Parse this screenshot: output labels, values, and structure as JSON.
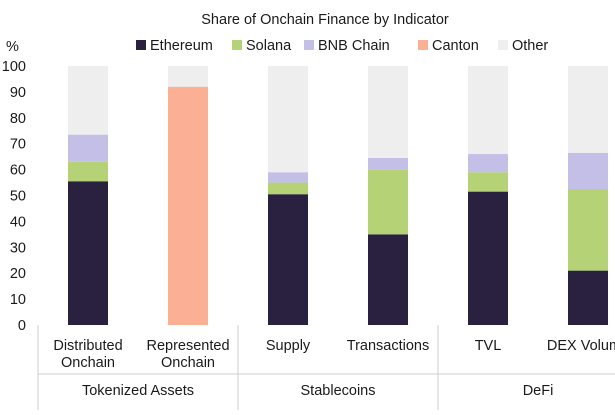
{
  "chart_data": {
    "type": "bar",
    "stacked": true,
    "title": "Share of Onchain Finance by Indicator",
    "ylabel": "%",
    "xlabel": "",
    "ylim": [
      0,
      100
    ],
    "yticks": [
      0,
      10,
      20,
      30,
      40,
      50,
      60,
      70,
      80,
      90,
      100
    ],
    "grid": false,
    "legend_position": "top",
    "categories": [
      [
        "Distributed",
        "Onchain"
      ],
      [
        "Represented",
        "Onchain"
      ],
      [
        "Supply"
      ],
      [
        "Transactions"
      ],
      [
        "TVL"
      ],
      [
        "DEX Volume"
      ]
    ],
    "groups": [
      {
        "label": "Tokenized Assets",
        "span": [
          0,
          1
        ]
      },
      {
        "label": "Stablecoins",
        "span": [
          2,
          3
        ]
      },
      {
        "label": "DeFi",
        "span": [
          4,
          5
        ]
      }
    ],
    "series": [
      {
        "name": "Ethereum",
        "color": "#29213f",
        "values": [
          55.5,
          0,
          50.5,
          35,
          51.5,
          21
        ]
      },
      {
        "name": "Solana",
        "color": "#b6d277",
        "values": [
          7.5,
          0,
          4.5,
          25,
          7.5,
          31.5
        ]
      },
      {
        "name": "BNB Chain",
        "color": "#c4bfe6",
        "values": [
          10.5,
          0,
          4,
          4.5,
          7,
          14
        ]
      },
      {
        "name": "Canton",
        "color": "#fbaf95",
        "values": [
          0,
          92,
          0,
          0,
          0,
          0
        ]
      },
      {
        "name": "Other",
        "color": "#eeeeee",
        "values": [
          26.5,
          8,
          41,
          35.5,
          34,
          33.5
        ]
      }
    ]
  }
}
